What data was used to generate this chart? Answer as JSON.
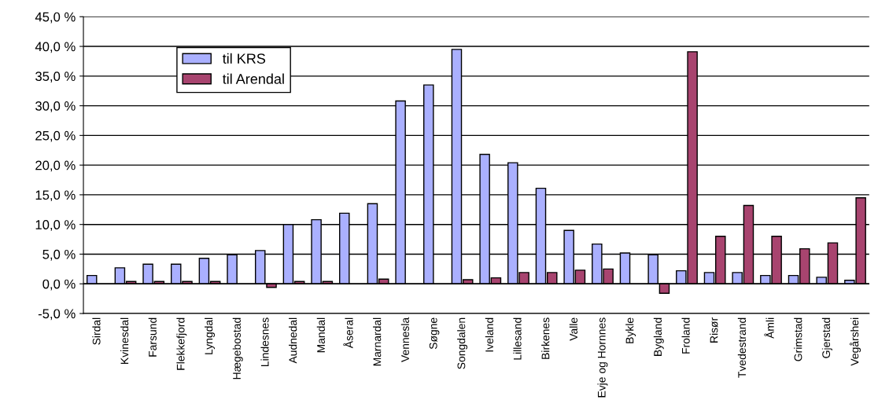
{
  "chart_data": {
    "type": "bar",
    "categories": [
      "Sirdal",
      "Kvinesdal",
      "Farsund",
      "Flekkefjord",
      "Lyngdal",
      "Hægebostad",
      "Lindesnes",
      "Audnedal",
      "Mandal",
      "Åseral",
      "Marnardal",
      "Vennesla",
      "Søgne",
      "Songdalen",
      "Iveland",
      "Lillesand",
      "Birkenes",
      "Valle",
      "Evje og Hornnes",
      "Bykle",
      "Bygland",
      "Froland",
      "Risør",
      "Tvedestrand",
      "Åmli",
      "Grimstad",
      "Gjerstad",
      "Vegårshei"
    ],
    "series": [
      {
        "name": "til KRS",
        "color": "#aab0ff",
        "values": [
          1.4,
          2.7,
          3.3,
          3.3,
          4.3,
          4.9,
          5.6,
          10.0,
          10.8,
          11.9,
          13.5,
          30.8,
          33.5,
          39.5,
          21.8,
          20.4,
          16.1,
          9.0,
          6.7,
          5.2,
          4.9,
          2.2,
          1.9,
          1.9,
          1.4,
          1.4,
          1.1,
          0.6
        ]
      },
      {
        "name": "til Arendal",
        "color": "#a8446f",
        "values": [
          null,
          0.4,
          0.4,
          0.4,
          0.4,
          null,
          -0.6,
          0.4,
          0.4,
          null,
          0.8,
          null,
          null,
          0.7,
          1.0,
          1.9,
          1.9,
          2.3,
          2.5,
          null,
          -1.6,
          39.1,
          8.0,
          13.2,
          8.0,
          5.9,
          6.9,
          14.5
        ]
      }
    ],
    "ylim": [
      -5,
      45
    ],
    "yticks": [
      {
        "value": -5,
        "label": "-5,0 %"
      },
      {
        "value": 0,
        "label": "0,0 %"
      },
      {
        "value": 5,
        "label": "5,0 %"
      },
      {
        "value": 10,
        "label": "10,0 %"
      },
      {
        "value": 15,
        "label": "15,0 %"
      },
      {
        "value": 20,
        "label": "20,0 %"
      },
      {
        "value": 25,
        "label": "25,0 %"
      },
      {
        "value": 30,
        "label": "30,0 %"
      },
      {
        "value": 35,
        "label": "35,0 %"
      },
      {
        "value": 40,
        "label": "40,0 %"
      },
      {
        "value": 45,
        "label": "45,0 %"
      }
    ],
    "grid": "y",
    "legend": "top left"
  }
}
